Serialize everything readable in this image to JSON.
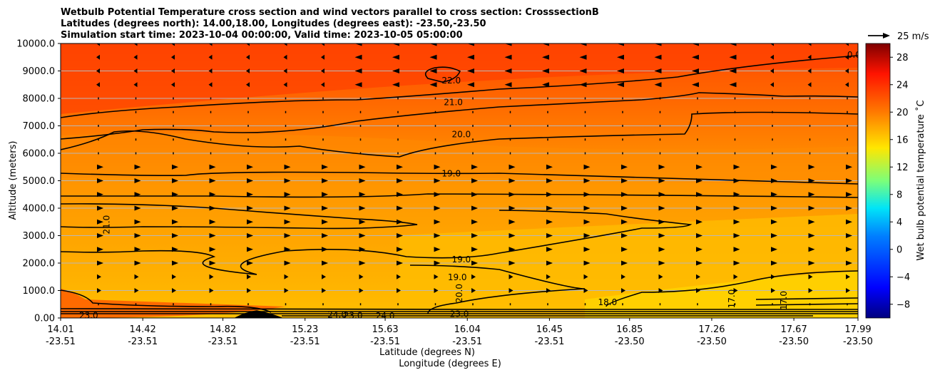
{
  "chart_data": {
    "type": "contourf",
    "title_lines": [
      "Wetbulb Potential Temperature cross section and wind vectors parallel to cross section: CrosssectionB",
      "Latitudes (degrees north): 14.00,18.00, Longitudes (degrees east): -23.50,-23.50",
      "Simulation start time: 2023-10-04 00:00:00, Valid time: 2023-10-05 05:00:00"
    ],
    "xlabel": "Latitude (degrees N)",
    "xlabel2": "Longitude (degrees E)",
    "ylabel": "Altitude (meters)",
    "ylim": [
      0,
      10000
    ],
    "y_ticks": [
      "0.00",
      "1000.0",
      "2000.0",
      "3000.0",
      "4000.0",
      "5000.0",
      "6000.0",
      "7000.0",
      "8000.0",
      "9000.0",
      "10000.0"
    ],
    "x_ticks": [
      {
        "lat": "14.01",
        "lon": "-23.51"
      },
      {
        "lat": "14.42",
        "lon": "-23.51"
      },
      {
        "lat": "14.82",
        "lon": "-23.51"
      },
      {
        "lat": "15.23",
        "lon": "-23.51"
      },
      {
        "lat": "15.63",
        "lon": "-23.51"
      },
      {
        "lat": "16.04",
        "lon": "-23.51"
      },
      {
        "lat": "16.45",
        "lon": "-23.51"
      },
      {
        "lat": "16.85",
        "lon": "-23.50"
      },
      {
        "lat": "17.26",
        "lon": "-23.50"
      },
      {
        "lat": "17.67",
        "lon": "-23.50"
      },
      {
        "lat": "17.99",
        "lon": "-23.50"
      }
    ],
    "colorbar": {
      "label": "Wet bulb potential temperature ˚C",
      "range": [
        -10,
        30
      ],
      "ticks": [
        "-8",
        "-4",
        "0",
        "4",
        "8",
        "12",
        "16",
        "20",
        "24",
        "28"
      ]
    },
    "quiver_key": "25 m/s",
    "contour_labels": [
      {
        "text": "22.0",
        "lat": 15.96,
        "alt": 8650
      },
      {
        "text": "21.0",
        "lat": 15.97,
        "alt": 7860
      },
      {
        "text": "20.0",
        "lat": 16.01,
        "alt": 6690
      },
      {
        "text": "19.0",
        "lat": 15.96,
        "alt": 5260
      },
      {
        "text": "21.0",
        "lat": 14.24,
        "alt": 3400
      },
      {
        "text": "19.0",
        "lat": 16.01,
        "alt": 2130
      },
      {
        "text": "19.0",
        "lat": 15.99,
        "alt": 1480
      },
      {
        "text": "20.0",
        "lat": 16.0,
        "alt": 900
      },
      {
        "text": "18.0",
        "lat": 16.74,
        "alt": 570
      },
      {
        "text": "17.0",
        "lat": 17.36,
        "alt": 700
      },
      {
        "text": "17.0",
        "lat": 17.62,
        "alt": 640
      },
      {
        "text": "23.0",
        "lat": 16.0,
        "alt": 140
      },
      {
        "text": "24.0",
        "lat": 15.39,
        "alt": 120
      },
      {
        "text": "23.0",
        "lat": 15.47,
        "alt": 90
      },
      {
        "text": "24.0",
        "lat": 15.63,
        "alt": 80
      },
      {
        "text": "23.0",
        "lat": 14.15,
        "alt": 90
      },
      {
        "text": "0.0",
        "lat": 17.97,
        "alt": 9580
      }
    ]
  }
}
